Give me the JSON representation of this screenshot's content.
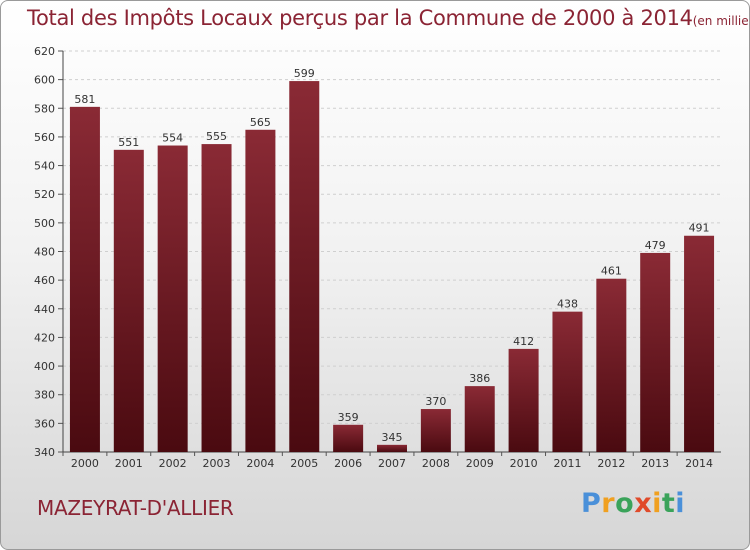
{
  "title": "Total des Impôts Locaux perçus par la Commune de 2000 à 2014",
  "unit_note": "(en milliers d'€)",
  "commune": "MAZEYRAT-D'ALLIER",
  "logo": {
    "text": "Proxiti",
    "letters": [
      "P",
      "r",
      "o",
      "x",
      "i",
      "t",
      "i"
    ]
  },
  "colors": {
    "bar_top": "#8a2a35",
    "bar_bottom": "#4a0a10",
    "title": "#8b2434"
  },
  "chart_data": {
    "type": "bar",
    "title": "Total des Impôts Locaux perçus par la Commune de 2000 à 2014",
    "xlabel": "",
    "ylabel": "",
    "categories": [
      "2000",
      "2001",
      "2002",
      "2003",
      "2004",
      "2005",
      "2006",
      "2007",
      "2008",
      "2009",
      "2010",
      "2011",
      "2012",
      "2013",
      "2014"
    ],
    "values": [
      581,
      551,
      554,
      555,
      565,
      599,
      359,
      345,
      370,
      386,
      412,
      438,
      461,
      479,
      491
    ],
    "ylim": [
      340,
      620
    ],
    "yticks": [
      340,
      360,
      380,
      400,
      420,
      440,
      460,
      480,
      500,
      520,
      540,
      560,
      580,
      600,
      620
    ],
    "grid": true
  }
}
